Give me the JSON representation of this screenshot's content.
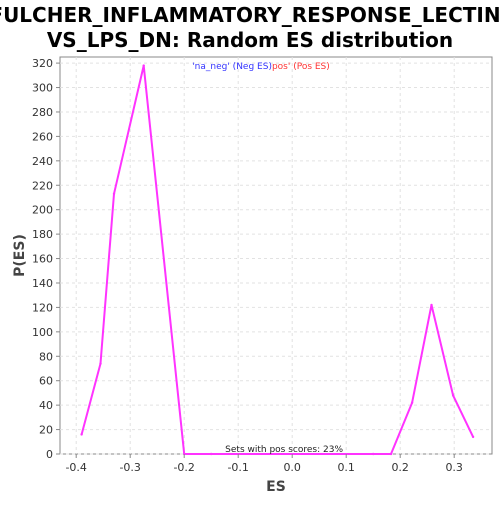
{
  "chart_data": {
    "type": "line",
    "title_line1": "FULCHER_INFLAMMATORY_RESPONSE_LECTIN_",
    "title_line2": "VS_LPS_DN: Random ES distribution",
    "xlabel": "ES",
    "ylabel": "P(ES)",
    "xlim": [
      -0.43,
      0.37
    ],
    "ylim": [
      0,
      325
    ],
    "x_ticks": [
      -0.4,
      -0.3,
      -0.2,
      -0.1,
      0.0,
      0.1,
      0.2,
      0.3
    ],
    "x_tick_labels": [
      "-0.4",
      "-0.3",
      "-0.2",
      "-0.1",
      "0.0",
      "0.1",
      "0.2",
      "0.3"
    ],
    "y_ticks": [
      0,
      20,
      40,
      60,
      80,
      100,
      120,
      140,
      160,
      180,
      200,
      220,
      240,
      260,
      280,
      300,
      320
    ],
    "grid": true,
    "series": [
      {
        "color": "#ff33ff",
        "x": [
          -0.39,
          -0.355,
          -0.33,
          -0.275,
          -0.2,
          -0.15,
          0.15,
          0.183,
          0.222,
          0.258,
          0.298,
          0.335
        ],
        "y": [
          16,
          74,
          213,
          318,
          0,
          0,
          0,
          0,
          42,
          122,
          48,
          14
        ]
      }
    ],
    "legend": {
      "position": "top-center",
      "neg_label": "'na_neg' (Neg ES)",
      "pos_label": "pos' (Pos ES)",
      "neg_color": "#3333ff",
      "pos_color": "#ff3333"
    },
    "annotation": "Sets with pos scores: 23%"
  }
}
